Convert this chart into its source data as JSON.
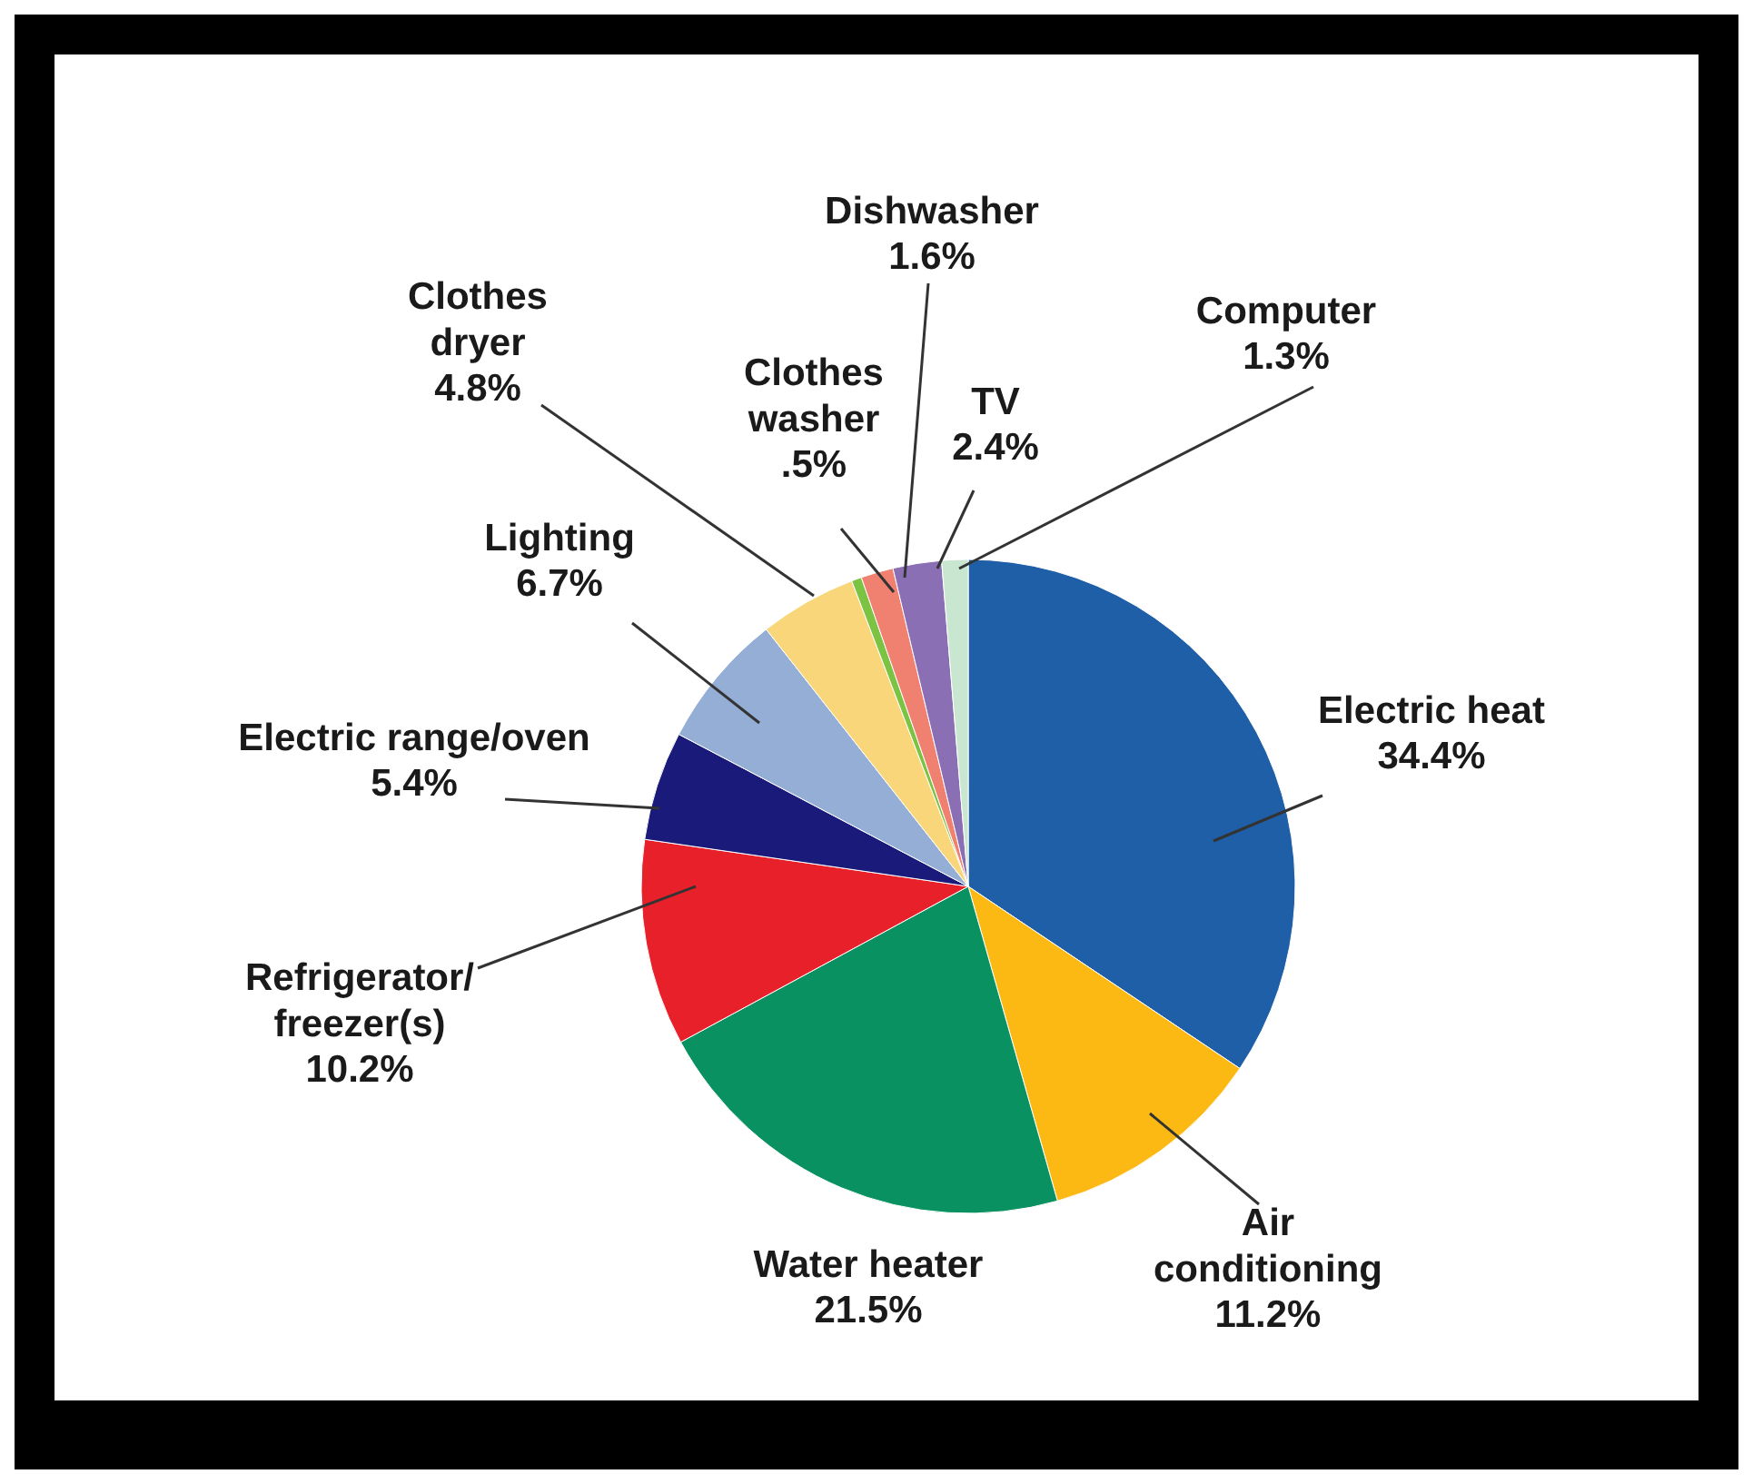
{
  "chart_data": {
    "type": "pie",
    "categories": [
      "Electric heat",
      "Air conditioning",
      "Water heater",
      "Refrigerator/freezer(s)",
      "Electric range/oven",
      "Lighting",
      "Clothes dryer",
      "Clothes washer",
      "Dishwasher",
      "TV",
      "Computer"
    ],
    "values": [
      34.4,
      11.2,
      21.5,
      10.2,
      5.4,
      6.7,
      4.8,
      0.5,
      1.6,
      2.4,
      1.3
    ],
    "value_labels": [
      "34.4%",
      "11.2%",
      "21.5%",
      "10.2%",
      "5.4%",
      "6.7%",
      "4.8%",
      ".5%",
      "1.6%",
      "2.4%",
      "1.3%"
    ],
    "colors": [
      "#1f5fa8",
      "#fdb913",
      "#0a9161",
      "#e8202a",
      "#1a1a7a",
      "#94aed6",
      "#f9d67a",
      "#7cc243",
      "#f08070",
      "#8b6fb5",
      "#c8e6d0"
    ]
  }
}
